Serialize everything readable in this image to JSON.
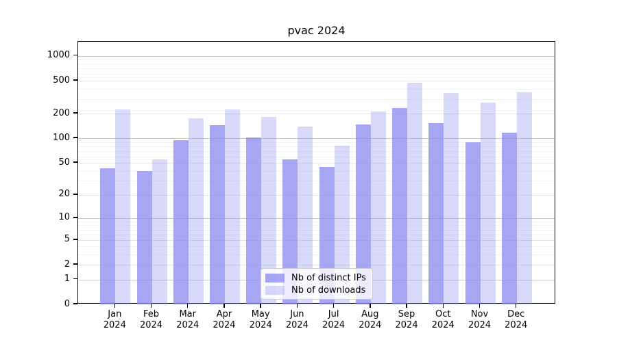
{
  "chart_data": {
    "type": "bar",
    "title": "pvac 2024",
    "year_label": "2024",
    "months": [
      "Jan",
      "Feb",
      "Mar",
      "Apr",
      "May",
      "Jun",
      "Jul",
      "Aug",
      "Sep",
      "Oct",
      "Nov",
      "Dec"
    ],
    "categories": [
      "Jan 2024",
      "Feb 2024",
      "Mar 2024",
      "Apr 2024",
      "May 2024",
      "Jun 2024",
      "Jul 2024",
      "Aug 2024",
      "Sep 2024",
      "Oct 2024",
      "Nov 2024",
      "Dec 2024"
    ],
    "series": [
      {
        "name": "Nb of distinct IPs",
        "key": "distinct-ips",
        "color": "rgba(136,136,238,0.75)",
        "values": [
          43,
          40,
          95,
          146,
          102,
          55,
          45,
          147,
          232,
          154,
          90,
          118
        ]
      },
      {
        "name": "Nb of downloads",
        "key": "downloads",
        "color": "rgba(136,136,238,0.32)",
        "values": [
          224,
          55,
          176,
          224,
          183,
          139,
          82,
          214,
          468,
          352,
          274,
          360
        ]
      }
    ],
    "yscale": "log1p",
    "ylim": [
      0,
      1480
    ],
    "yticks": [
      0,
      1,
      2,
      5,
      10,
      20,
      50,
      100,
      200,
      500,
      1000
    ],
    "ytick_labels": [
      "0",
      "1",
      "2",
      "5",
      "10",
      "20",
      "50",
      "100",
      "200",
      "500",
      "1000"
    ],
    "major_grid_values": [
      1,
      10,
      100,
      1000
    ],
    "mid_grid_values": [
      2,
      5,
      20,
      50,
      200,
      500
    ],
    "minor_grid_values": [
      3,
      4,
      6,
      7,
      8,
      9,
      30,
      40,
      60,
      70,
      80,
      90,
      300,
      400,
      600,
      700,
      800,
      900
    ],
    "grid": true,
    "legend_position": "lower center",
    "colors": {
      "bar_base": "#8888ee",
      "grid_major": "#c9c9c9",
      "grid_mid": "#e3e3e3",
      "grid_minor": "#f1f1f1",
      "spine": "#000000",
      "background": "#ffffff"
    }
  }
}
